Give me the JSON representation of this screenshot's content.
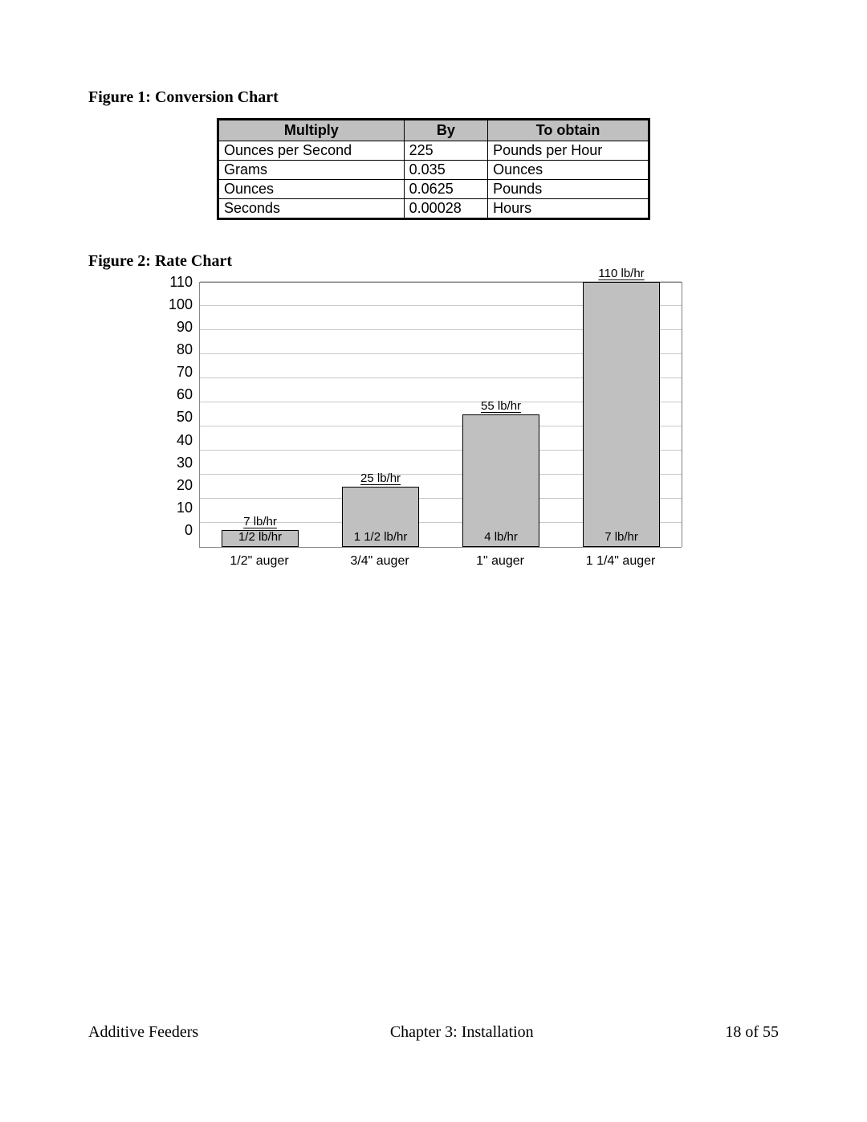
{
  "figure1": {
    "title": "Figure 1: Conversion Chart",
    "columns": [
      "Multiply",
      "By",
      "To obtain"
    ],
    "rows": [
      [
        "Ounces per Second",
        "225",
        "Pounds per Hour"
      ],
      [
        "Grams",
        "0.035",
        "Ounces"
      ],
      [
        "Ounces",
        "0.0625",
        "Pounds"
      ],
      [
        "Seconds",
        "0.00028",
        "Hours"
      ]
    ],
    "header_bg": "#c0c0c0"
  },
  "figure2": {
    "title": "Figure 2:  Rate Chart",
    "type": "bar",
    "y_ticks": [
      110,
      100,
      90,
      80,
      70,
      60,
      50,
      40,
      30,
      20,
      10,
      0
    ],
    "y_max": 110,
    "categories": [
      "1/2\" auger",
      "3/4\" auger",
      "1\" auger",
      "1 1/4\" auger"
    ],
    "bars": [
      {
        "value": 7,
        "top_label": "7 lb/hr",
        "bottom_label": "1/2 lb/hr"
      },
      {
        "value": 25,
        "top_label": "25 lb/hr",
        "bottom_label": "1 1/2 lb/hr"
      },
      {
        "value": 55,
        "top_label": "55 lb/hr",
        "bottom_label": "4 lb/hr"
      },
      {
        "value": 110,
        "top_label": "110 lb/hr",
        "bottom_label": "7 lb/hr"
      }
    ],
    "bar_color": "#c0c0c0",
    "bar_border": "#000000",
    "grid_color": "#c8c8c8",
    "axis_color": "#888888",
    "font": "Arial",
    "tick_fontsize": 18,
    "label_fontsize": 15
  },
  "footer": {
    "left": "Additive Feeders",
    "center": "Chapter 3: Installation",
    "right": "18 of 55"
  }
}
